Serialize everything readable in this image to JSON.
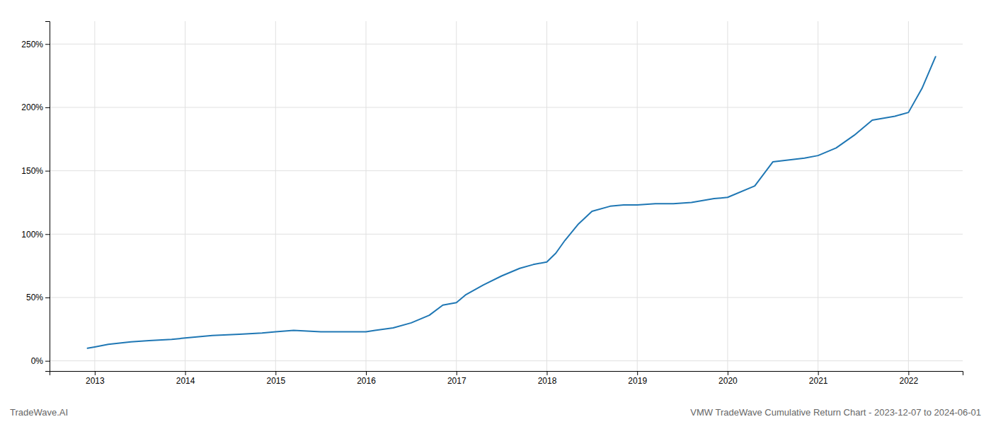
{
  "chart_data": {
    "type": "line",
    "x": [
      2012.92,
      2013.0,
      2013.15,
      2013.4,
      2013.6,
      2013.85,
      2014.0,
      2014.3,
      2014.6,
      2014.85,
      2015.0,
      2015.2,
      2015.5,
      2015.85,
      2016.0,
      2016.1,
      2016.3,
      2016.5,
      2016.7,
      2016.85,
      2017.0,
      2017.1,
      2017.3,
      2017.5,
      2017.7,
      2017.85,
      2018.0,
      2018.1,
      2018.2,
      2018.35,
      2018.5,
      2018.7,
      2018.85,
      2019.0,
      2019.2,
      2019.4,
      2019.6,
      2019.85,
      2020.0,
      2020.3,
      2020.5,
      2020.85,
      2021.0,
      2021.2,
      2021.4,
      2021.6,
      2021.85,
      2022.0,
      2022.15,
      2022.3
    ],
    "values": [
      10,
      11,
      13,
      15,
      16,
      17,
      18,
      20,
      21,
      22,
      23,
      24,
      23,
      23,
      23,
      24,
      26,
      30,
      36,
      44,
      46,
      52,
      60,
      67,
      73,
      76,
      78,
      85,
      95,
      108,
      118,
      122,
      123,
      123,
      124,
      124,
      125,
      128,
      129,
      138,
      157,
      160,
      162,
      168,
      178,
      190,
      193,
      196,
      215,
      240
    ],
    "xlim": [
      2012.5,
      2022.6
    ],
    "ylim": [
      -8,
      268
    ],
    "xticks": [
      2013,
      2014,
      2015,
      2016,
      2017,
      2018,
      2019,
      2020,
      2021,
      2022
    ],
    "yticks": [
      {
        "value": 0,
        "label": "0%"
      },
      {
        "value": 50,
        "label": "50%"
      },
      {
        "value": 100,
        "label": "100%"
      },
      {
        "value": 150,
        "label": "150%"
      },
      {
        "value": 200,
        "label": "200%"
      },
      {
        "value": 250,
        "label": "250%"
      }
    ],
    "grid": true,
    "annotations": [
      "TradeWave.AI",
      "VMW TradeWave Cumulative Return Chart - 2023-12-07 to 2024-06-01"
    ]
  }
}
